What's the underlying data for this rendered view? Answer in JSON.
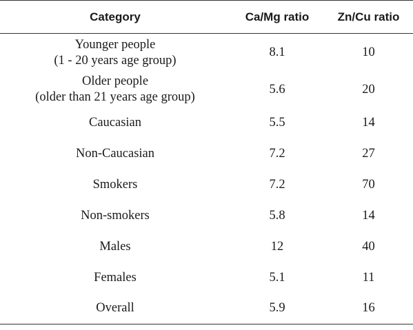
{
  "table": {
    "headers": {
      "category": "Category",
      "ca_mg": "Ca/Mg ratio",
      "zn_cu": "Zn/Cu ratio"
    },
    "rows": [
      {
        "category": "Younger people\n(1 - 20 years age group)",
        "ca_mg": "8.1",
        "zn_cu": "10"
      },
      {
        "category": "Older people\n(older than 21 years age group)",
        "ca_mg": "5.6",
        "zn_cu": "20"
      },
      {
        "category": "Caucasian",
        "ca_mg": "5.5",
        "zn_cu": "14"
      },
      {
        "category": "Non-Caucasian",
        "ca_mg": "7.2",
        "zn_cu": "27"
      },
      {
        "category": "Smokers",
        "ca_mg": "7.2",
        "zn_cu": "70"
      },
      {
        "category": "Non-smokers",
        "ca_mg": "5.8",
        "zn_cu": "14"
      },
      {
        "category": "Males",
        "ca_mg": "12",
        "zn_cu": "40"
      },
      {
        "category": "Females",
        "ca_mg": "5.1",
        "zn_cu": "11"
      },
      {
        "category": "Overall",
        "ca_mg": "5.9",
        "zn_cu": "16"
      }
    ]
  }
}
